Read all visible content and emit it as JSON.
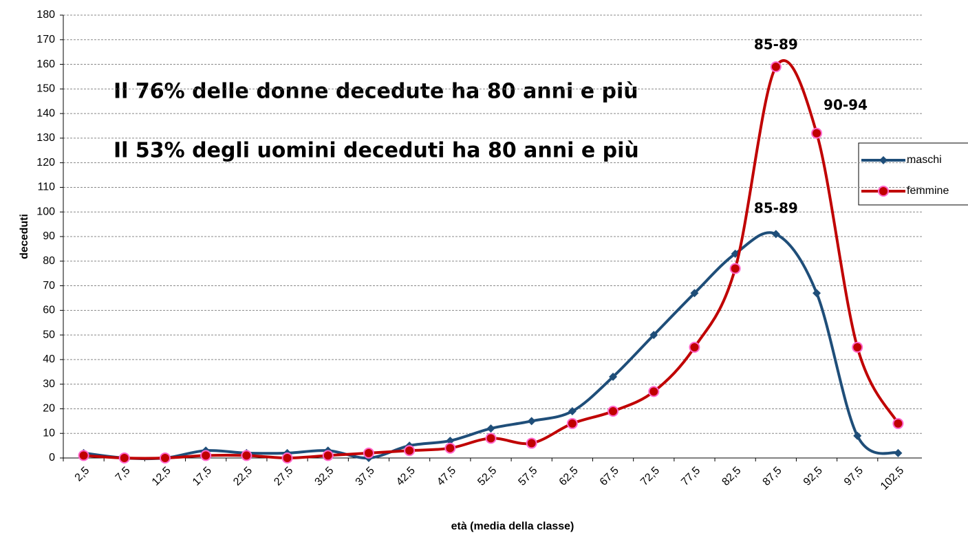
{
  "chart_data": {
    "type": "line",
    "categories": [
      "2,5",
      "7,5",
      "12,5",
      "17,5",
      "22,5",
      "27,5",
      "32,5",
      "37,5",
      "42,5",
      "47,5",
      "52,5",
      "57,5",
      "62,5",
      "67,5",
      "72,5",
      "77,5",
      "82,5",
      "87,5",
      "92,5",
      "97,5",
      "102,5"
    ],
    "series": [
      {
        "name": "maschi",
        "color": "#1f4e79",
        "values": [
          2,
          0,
          0,
          3,
          2,
          2,
          3,
          0,
          5,
          7,
          12,
          15,
          19,
          33,
          50,
          67,
          83,
          91,
          67,
          9,
          2
        ]
      },
      {
        "name": "femmine",
        "color": "#c00000",
        "values": [
          1,
          0,
          0,
          1,
          1,
          0,
          1,
          2,
          3,
          4,
          8,
          6,
          14,
          19,
          27,
          45,
          77,
          159,
          132,
          45,
          14
        ]
      }
    ],
    "ylim": [
      0,
      180
    ],
    "yticks": [
      0,
      10,
      20,
      30,
      40,
      50,
      60,
      70,
      80,
      90,
      100,
      110,
      120,
      130,
      140,
      150,
      160,
      170,
      180
    ],
    "grid": true,
    "legend": "right",
    "xlabel": "età (media della classe)",
    "ylabel": "deceduti",
    "annotations": [
      "85-89",
      "90-94",
      "85-89"
    ],
    "notes": [
      "Il 76% delle donne decedute ha 80 anni e più",
      "Il 53% degli uomini deceduti ha 80 anni e più"
    ]
  }
}
